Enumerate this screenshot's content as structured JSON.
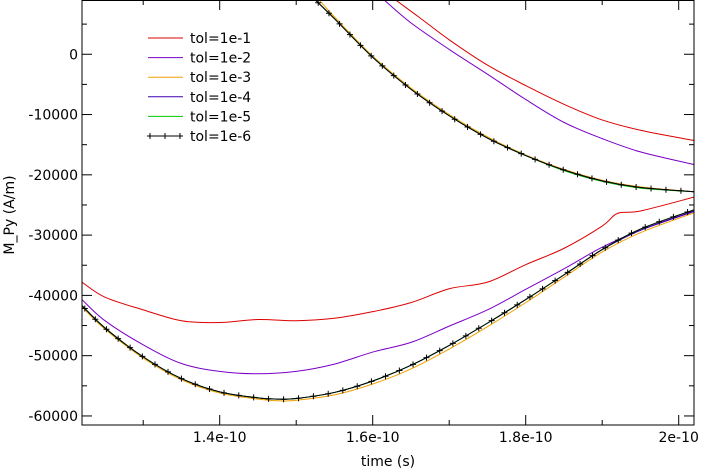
{
  "chart_data": {
    "type": "line",
    "xlabel": "time (s)",
    "ylabel": "M_Py (A/m)",
    "xlim": [
      1.22e-10,
      2.02e-10
    ],
    "ylim": [
      -61500,
      9000
    ],
    "x_ticks": [
      {
        "value": 1.4e-10,
        "label": "1.4e-10"
      },
      {
        "value": 1.6e-10,
        "label": "1.6e-10"
      },
      {
        "value": 1.8e-10,
        "label": "1.8e-10"
      },
      {
        "value": 2e-10,
        "label": "2e-10"
      }
    ],
    "y_ticks": [
      {
        "value": 0,
        "label": "0"
      },
      {
        "value": -10000,
        "label": "-10000"
      },
      {
        "value": -20000,
        "label": "-20000"
      },
      {
        "value": -30000,
        "label": "-30000"
      },
      {
        "value": -40000,
        "label": "-40000"
      },
      {
        "value": -50000,
        "label": "-50000"
      },
      {
        "value": -60000,
        "label": "-60000"
      }
    ],
    "grid": false,
    "legend_position": "top-left",
    "series": [
      {
        "name": "tol=1e-1",
        "color": "#dd0000",
        "marker": false,
        "upper": [
          [
            1.63e-10,
            9000
          ],
          [
            1.66e-10,
            6200
          ],
          [
            1.7e-10,
            2400
          ],
          [
            1.75e-10,
            -1800
          ],
          [
            1.8e-10,
            -5200
          ],
          [
            1.85e-10,
            -8300
          ],
          [
            1.9e-10,
            -10900
          ],
          [
            1.95e-10,
            -12600
          ],
          [
            2.02e-10,
            -14300
          ]
        ],
        "lower": [
          [
            1.22e-10,
            -37800
          ],
          [
            1.25e-10,
            -40300
          ],
          [
            1.3e-10,
            -42400
          ],
          [
            1.35e-10,
            -44200
          ],
          [
            1.4e-10,
            -44500
          ],
          [
            1.45e-10,
            -44000
          ],
          [
            1.5e-10,
            -44200
          ],
          [
            1.55e-10,
            -43800
          ],
          [
            1.6e-10,
            -42700
          ],
          [
            1.65e-10,
            -41200
          ],
          [
            1.7e-10,
            -38900
          ],
          [
            1.75e-10,
            -37800
          ],
          [
            1.8e-10,
            -34900
          ],
          [
            1.85e-10,
            -32200
          ],
          [
            1.9e-10,
            -28500
          ],
          [
            1.92e-10,
            -26400
          ],
          [
            1.95e-10,
            -26000
          ],
          [
            2.02e-10,
            -23700
          ]
        ]
      },
      {
        "name": "tol=1e-2",
        "color": "#7a00c8",
        "marker": false,
        "upper": [
          [
            1.615e-10,
            9000
          ],
          [
            1.65e-10,
            5200
          ],
          [
            1.7e-10,
            800
          ],
          [
            1.75e-10,
            -3300
          ],
          [
            1.8e-10,
            -7500
          ],
          [
            1.85e-10,
            -11300
          ],
          [
            1.9e-10,
            -14000
          ],
          [
            1.95e-10,
            -16200
          ],
          [
            2.02e-10,
            -18300
          ]
        ],
        "lower": [
          [
            1.22e-10,
            -40700
          ],
          [
            1.25e-10,
            -44200
          ],
          [
            1.3e-10,
            -48200
          ],
          [
            1.35e-10,
            -51300
          ],
          [
            1.4e-10,
            -52600
          ],
          [
            1.45e-10,
            -53000
          ],
          [
            1.5e-10,
            -52600
          ],
          [
            1.55e-10,
            -51400
          ],
          [
            1.6e-10,
            -49400
          ],
          [
            1.65e-10,
            -47800
          ],
          [
            1.7e-10,
            -45100
          ],
          [
            1.75e-10,
            -42400
          ],
          [
            1.8e-10,
            -39000
          ],
          [
            1.85e-10,
            -35600
          ],
          [
            1.9e-10,
            -32000
          ],
          [
            1.95e-10,
            -29200
          ],
          [
            2.02e-10,
            -26100
          ]
        ]
      },
      {
        "name": "tol=1e-3",
        "color": "#f0a000",
        "marker": false,
        "upper": [
          [
            1.53e-10,
            9000
          ],
          [
            1.55e-10,
            6200
          ],
          [
            1.6e-10,
            -300
          ],
          [
            1.65e-10,
            -5600
          ],
          [
            1.7e-10,
            -10000
          ],
          [
            1.75e-10,
            -13700
          ],
          [
            1.8e-10,
            -16700
          ],
          [
            1.85e-10,
            -19100
          ],
          [
            1.9e-10,
            -20900
          ],
          [
            1.95e-10,
            -22000
          ],
          [
            2.02e-10,
            -22800
          ]
        ],
        "lower": [
          [
            1.22e-10,
            -41900
          ],
          [
            1.25e-10,
            -45600
          ],
          [
            1.3e-10,
            -50400
          ],
          [
            1.35e-10,
            -54000
          ],
          [
            1.4e-10,
            -56200
          ],
          [
            1.45e-10,
            -57200
          ],
          [
            1.48e-10,
            -57500
          ],
          [
            1.5e-10,
            -57400
          ],
          [
            1.55e-10,
            -56500
          ],
          [
            1.6e-10,
            -54700
          ],
          [
            1.65e-10,
            -52200
          ],
          [
            1.7e-10,
            -48900
          ],
          [
            1.75e-10,
            -45200
          ],
          [
            1.8e-10,
            -41200
          ],
          [
            1.85e-10,
            -37000
          ],
          [
            1.9e-10,
            -32800
          ],
          [
            1.95e-10,
            -29600
          ],
          [
            2.02e-10,
            -26300
          ]
        ]
      },
      {
        "name": "tol=1e-4",
        "color": "#3a00b0",
        "marker": false,
        "upper": [
          [
            1.525e-10,
            9000
          ],
          [
            1.55e-10,
            5900
          ],
          [
            1.6e-10,
            -500
          ],
          [
            1.65e-10,
            -5800
          ],
          [
            1.7e-10,
            -10200
          ],
          [
            1.75e-10,
            -13900
          ],
          [
            1.8e-10,
            -16800
          ],
          [
            1.85e-10,
            -19200
          ],
          [
            1.9e-10,
            -21000
          ],
          [
            1.95e-10,
            -22100
          ],
          [
            2.02e-10,
            -22800
          ]
        ],
        "lower": [
          [
            1.22e-10,
            -41700
          ],
          [
            1.25e-10,
            -45400
          ],
          [
            1.3e-10,
            -50200
          ],
          [
            1.35e-10,
            -53800
          ],
          [
            1.4e-10,
            -56000
          ],
          [
            1.45e-10,
            -57000
          ],
          [
            1.475e-10,
            -57200
          ],
          [
            1.5e-10,
            -57100
          ],
          [
            1.55e-10,
            -56100
          ],
          [
            1.6e-10,
            -54200
          ],
          [
            1.65e-10,
            -51600
          ],
          [
            1.7e-10,
            -48300
          ],
          [
            1.75e-10,
            -44600
          ],
          [
            1.8e-10,
            -40700
          ],
          [
            1.85e-10,
            -36600
          ],
          [
            1.9e-10,
            -32400
          ],
          [
            1.95e-10,
            -29200
          ],
          [
            2.02e-10,
            -26000
          ]
        ]
      },
      {
        "name": "tol=1e-5",
        "color": "#00cc00",
        "marker": false,
        "upper": [
          [
            1.525e-10,
            9000
          ],
          [
            1.55e-10,
            5900
          ],
          [
            1.6e-10,
            -500
          ],
          [
            1.65e-10,
            -5800
          ],
          [
            1.7e-10,
            -10200
          ],
          [
            1.75e-10,
            -13900
          ],
          [
            1.8e-10,
            -16800
          ],
          [
            1.85e-10,
            -19300
          ],
          [
            1.9e-10,
            -21100
          ],
          [
            1.95e-10,
            -22200
          ],
          [
            2.02e-10,
            -22800
          ]
        ],
        "lower": [
          [
            1.22e-10,
            -41700
          ],
          [
            1.25e-10,
            -45400
          ],
          [
            1.3e-10,
            -50200
          ],
          [
            1.35e-10,
            -53800
          ],
          [
            1.4e-10,
            -56000
          ],
          [
            1.45e-10,
            -57000
          ],
          [
            1.475e-10,
            -57200
          ],
          [
            1.5e-10,
            -57100
          ],
          [
            1.55e-10,
            -56100
          ],
          [
            1.6e-10,
            -54200
          ],
          [
            1.65e-10,
            -51600
          ],
          [
            1.7e-10,
            -48300
          ],
          [
            1.75e-10,
            -44600
          ],
          [
            1.8e-10,
            -40700
          ],
          [
            1.85e-10,
            -36600
          ],
          [
            1.9e-10,
            -32400
          ],
          [
            1.95e-10,
            -29000
          ],
          [
            2.02e-10,
            -25800
          ]
        ]
      },
      {
        "name": "tol=1e-6",
        "color": "#000000",
        "marker": true,
        "upper": [
          [
            1.525e-10,
            9000
          ],
          [
            1.55e-10,
            5900
          ],
          [
            1.6e-10,
            -500
          ],
          [
            1.65e-10,
            -5800
          ],
          [
            1.7e-10,
            -10200
          ],
          [
            1.75e-10,
            -13900
          ],
          [
            1.8e-10,
            -16800
          ],
          [
            1.85e-10,
            -19200
          ],
          [
            1.9e-10,
            -21000
          ],
          [
            1.95e-10,
            -22100
          ],
          [
            2.02e-10,
            -22800
          ]
        ],
        "lower": [
          [
            1.22e-10,
            -41700
          ],
          [
            1.25e-10,
            -45400
          ],
          [
            1.3e-10,
            -50200
          ],
          [
            1.35e-10,
            -53800
          ],
          [
            1.4e-10,
            -56000
          ],
          [
            1.45e-10,
            -57000
          ],
          [
            1.475e-10,
            -57200
          ],
          [
            1.5e-10,
            -57100
          ],
          [
            1.55e-10,
            -56100
          ],
          [
            1.6e-10,
            -54200
          ],
          [
            1.65e-10,
            -51600
          ],
          [
            1.7e-10,
            -48300
          ],
          [
            1.75e-10,
            -44600
          ],
          [
            1.8e-10,
            -40700
          ],
          [
            1.85e-10,
            -36600
          ],
          [
            1.9e-10,
            -32400
          ],
          [
            1.95e-10,
            -29000
          ],
          [
            2.02e-10,
            -25800
          ]
        ]
      }
    ]
  }
}
